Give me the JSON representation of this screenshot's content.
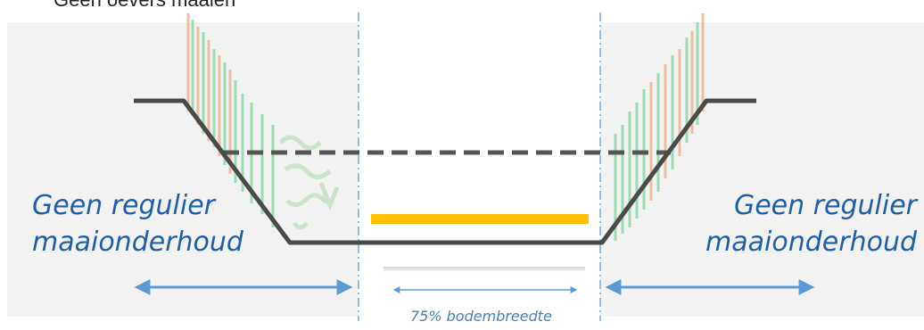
{
  "heading": "Geen oevers maaien",
  "left_zone": {
    "line1": "Geen regulier",
    "line2": "maaionderhoud"
  },
  "right_zone": {
    "line1": "Geen regulier",
    "line2": "maaionderhoud"
  },
  "center_caption": "75% bodembreedte",
  "colors": {
    "panel_grey": "#f2f2f2",
    "profile_line": "#4a4a4a",
    "water_level_dash": "#555555",
    "mowing_strip": "#ffc000",
    "arrow_blue": "#5b9bd5",
    "label_blue": "#1f5fa8",
    "divider_blue": "#5b9bd5",
    "vegetation_green": "#86d6a2",
    "vegetation_orange": "#e8b08c"
  }
}
